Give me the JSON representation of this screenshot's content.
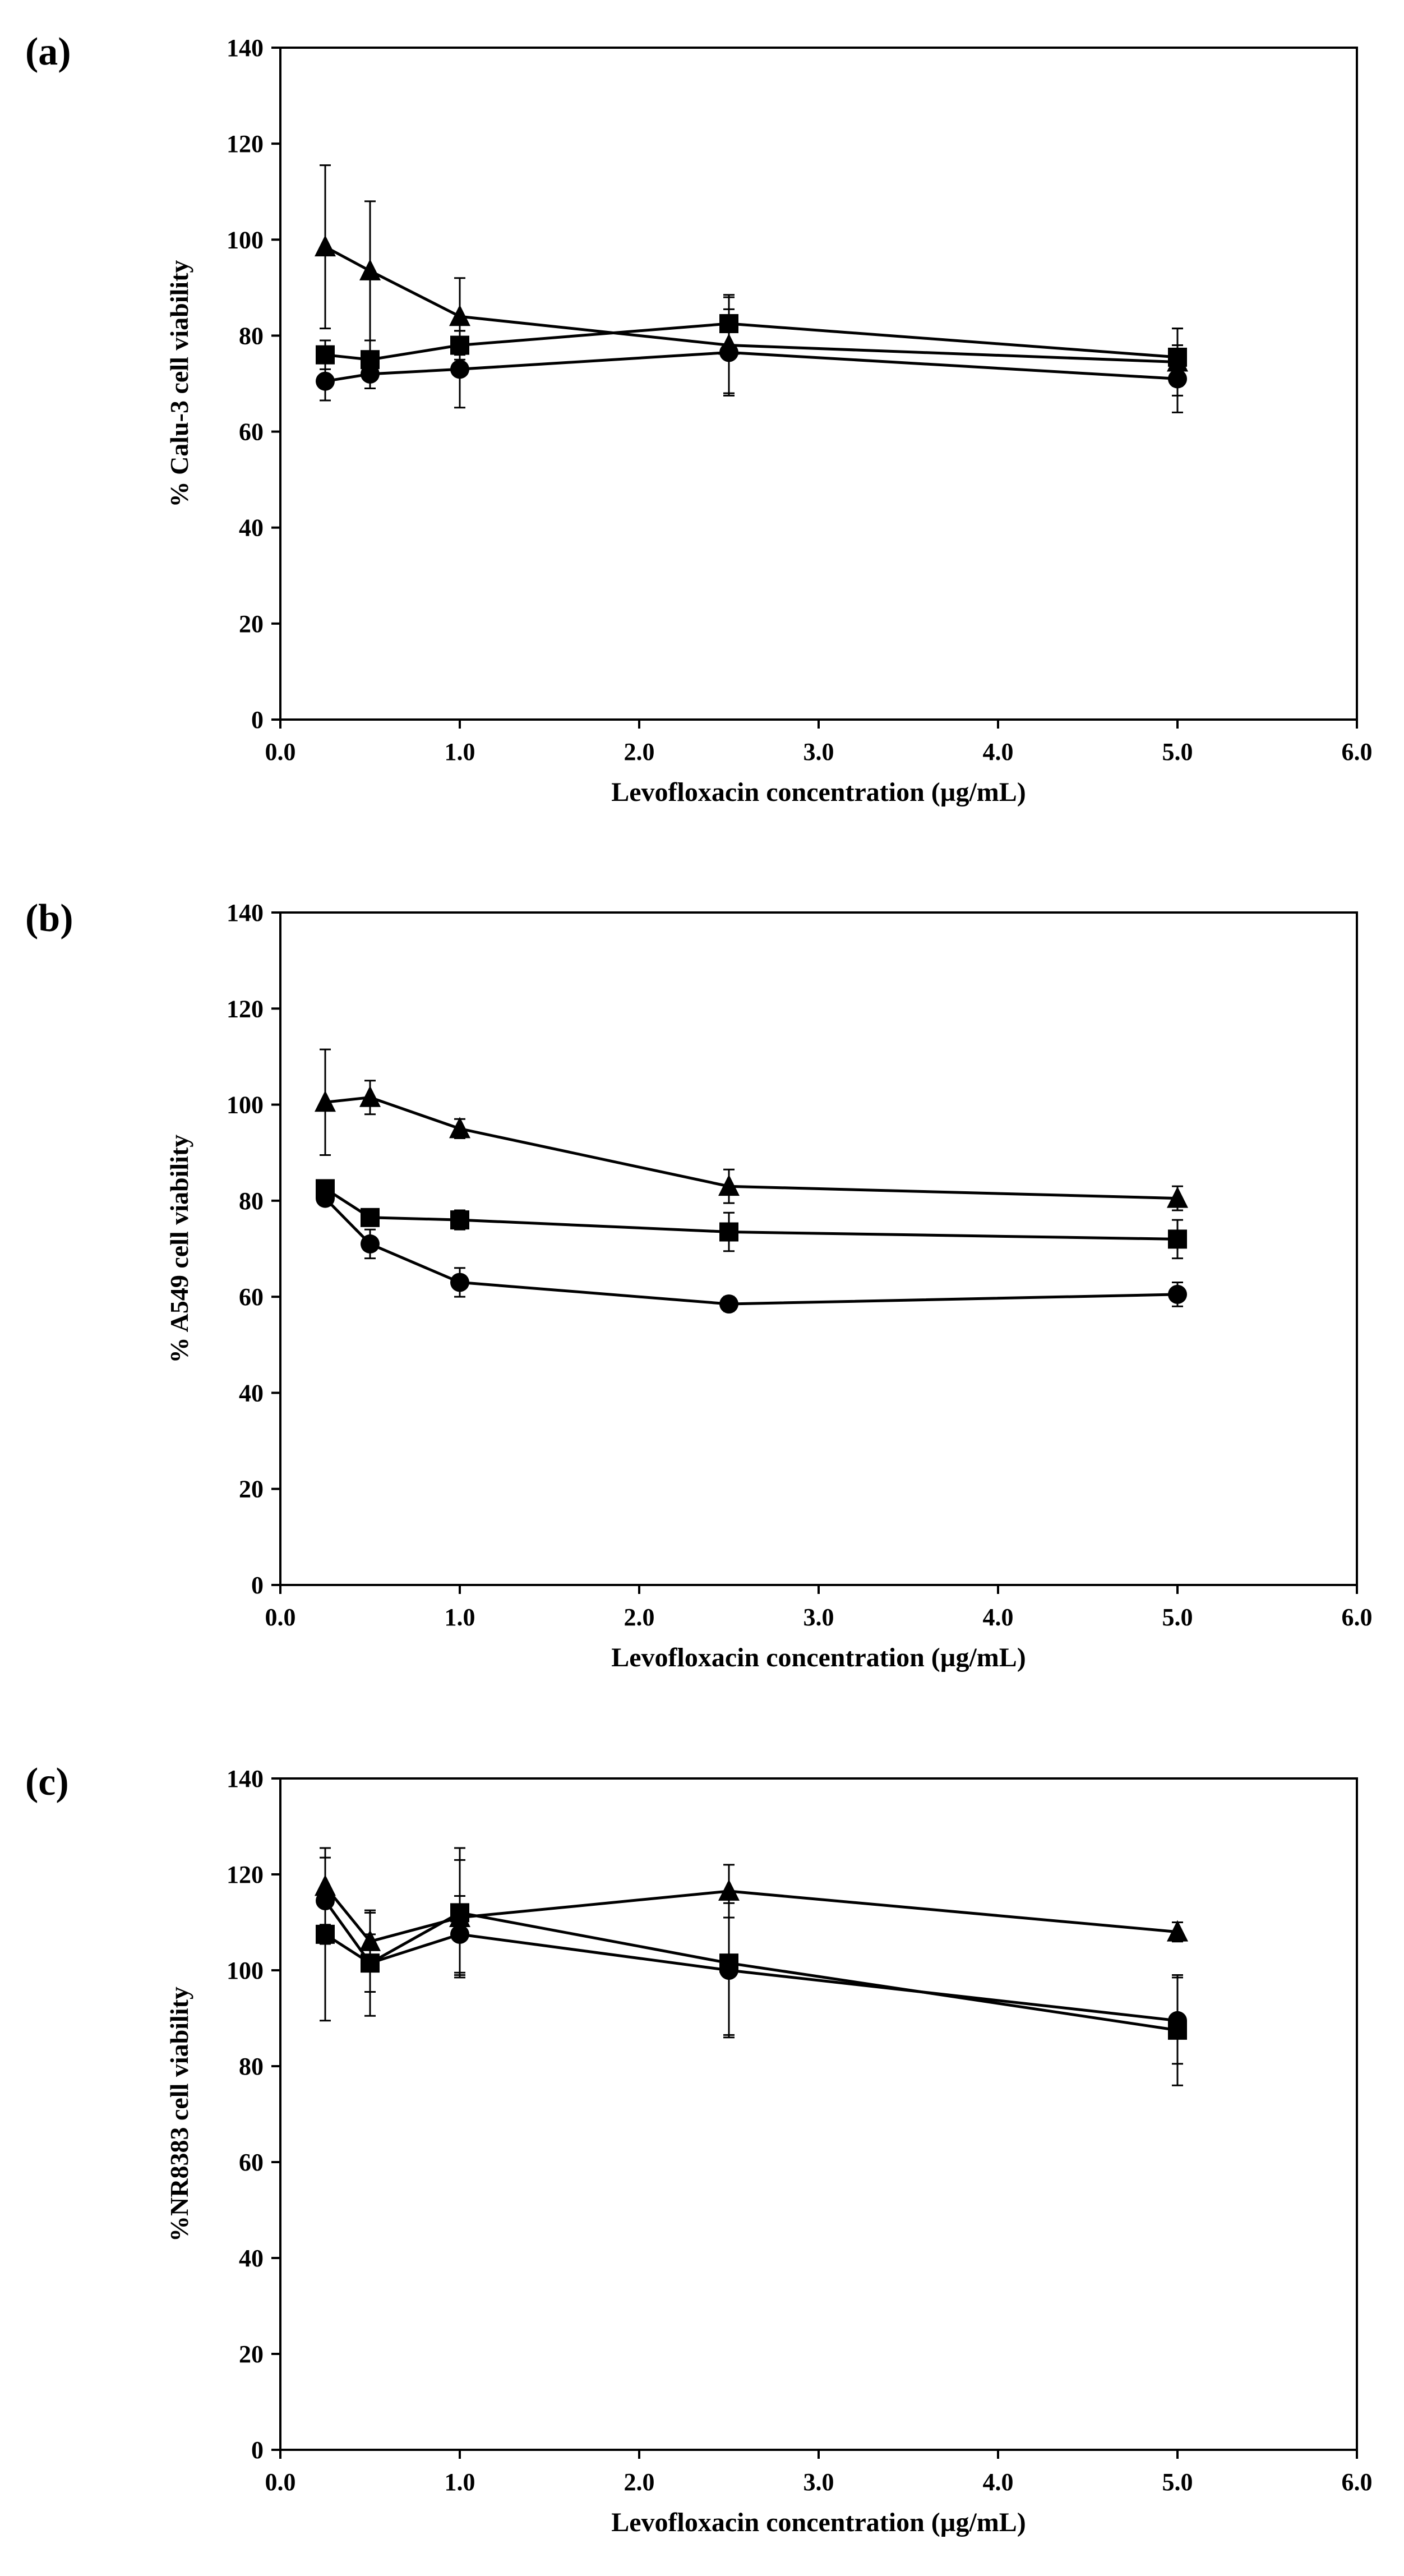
{
  "chart_data": [
    {
      "type": "line",
      "panel_label": "(a)",
      "xlabel": "Levofloxacin concentration (µg/mL)",
      "ylabel": "% Calu-3 cell viability",
      "xlim": [
        0,
        6
      ],
      "ylim": [
        0,
        140
      ],
      "xticks": [
        "0.0",
        "1.0",
        "2.0",
        "3.0",
        "4.0",
        "5.0",
        "6.0"
      ],
      "yticks": [
        "0",
        "20",
        "40",
        "60",
        "80",
        "100",
        "120",
        "140"
      ],
      "x": [
        0.25,
        0.5,
        1.0,
        2.5,
        5.0
      ],
      "series": [
        {
          "marker": "triangle",
          "values": [
            98.5,
            93.5,
            84,
            78,
            74.5
          ],
          "errors": [
            17,
            14.5,
            8,
            10,
            7
          ]
        },
        {
          "marker": "square",
          "values": [
            76,
            75,
            78,
            82.5,
            75.5
          ],
          "errors": [
            3,
            4,
            3,
            6,
            6
          ]
        },
        {
          "marker": "circle",
          "values": [
            70.5,
            72,
            73,
            76.5,
            71
          ],
          "errors": [
            4,
            3,
            8,
            9,
            7
          ]
        }
      ]
    },
    {
      "type": "line",
      "panel_label": "(b)",
      "xlabel": "Levofloxacin concentration (µg/mL)",
      "ylabel": "% A549 cell viability",
      "xlim": [
        0,
        6
      ],
      "ylim": [
        0,
        140
      ],
      "xticks": [
        "0.0",
        "1.0",
        "2.0",
        "3.0",
        "4.0",
        "5.0",
        "6.0"
      ],
      "yticks": [
        "0",
        "20",
        "40",
        "60",
        "80",
        "100",
        "120",
        "140"
      ],
      "x": [
        0.25,
        0.5,
        1.0,
        2.5,
        5.0
      ],
      "series": [
        {
          "marker": "triangle",
          "values": [
            100.5,
            101.5,
            95,
            83,
            80.5
          ],
          "errors": [
            11,
            3.5,
            2,
            3.5,
            2.5
          ]
        },
        {
          "marker": "square",
          "values": [
            82.5,
            76.5,
            76,
            73.5,
            72
          ],
          "errors": [
            1.5,
            1.5,
            2,
            4,
            4
          ]
        },
        {
          "marker": "circle",
          "values": [
            80.5,
            71,
            63,
            58.5,
            60.5
          ],
          "errors": [
            1.5,
            3,
            3,
            1.5,
            2.5
          ]
        }
      ]
    },
    {
      "type": "line",
      "panel_label": "(c)",
      "xlabel": "Levofloxacin concentration (µg/mL)",
      "ylabel": "%NR8383 cell viability",
      "xlim": [
        0,
        6
      ],
      "ylim": [
        0,
        140
      ],
      "xticks": [
        "0.0",
        "1.0",
        "2.0",
        "3.0",
        "4.0",
        "5.0",
        "6.0"
      ],
      "yticks": [
        "0",
        "20",
        "40",
        "60",
        "80",
        "100",
        "120",
        "140"
      ],
      "x": [
        0.25,
        0.5,
        1.0,
        2.5,
        5.0
      ],
      "series": [
        {
          "marker": "triangle",
          "values": [
            117.5,
            106,
            111,
            116.5,
            108
          ],
          "errors": [
            8,
            6,
            12,
            5.5,
            2
          ]
        },
        {
          "marker": "square",
          "values": [
            107.5,
            101.5,
            112,
            101.5,
            87.5
          ],
          "errors": [
            18,
            11,
            13.5,
            15,
            11.5
          ]
        },
        {
          "marker": "circle",
          "values": [
            114.5,
            101.5,
            107.5,
            100,
            89.5
          ],
          "errors": [
            9,
            6,
            8,
            14,
            9
          ]
        }
      ]
    }
  ]
}
